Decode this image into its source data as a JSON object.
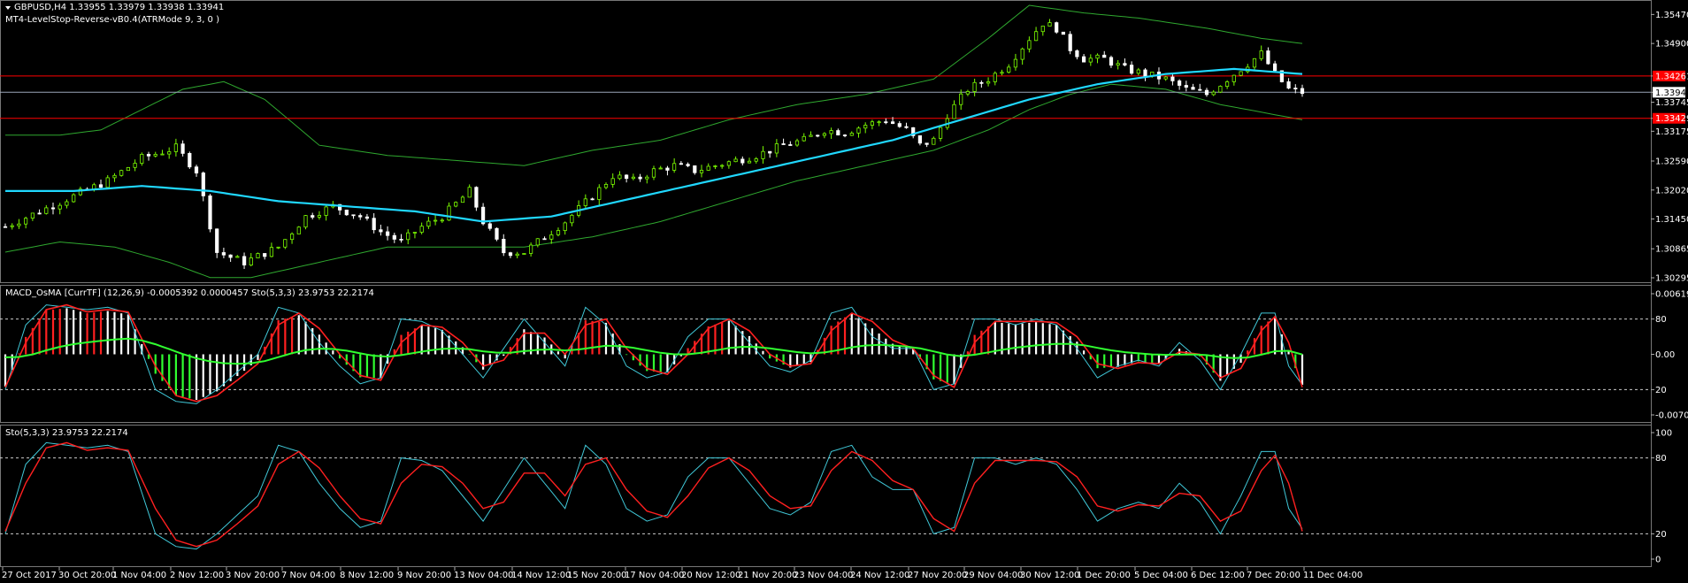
{
  "main_header": {
    "symbol_line": "GBPUSD,H4  1.33955 1.33979 1.33938 1.33941",
    "indicator_line": "MT4-LevelStop-Reverse-vB0.4(ATRMode 9, 3, 0 )"
  },
  "macd_header": "MACD_OsMA [CurrTF] (12,26,9) -0.0005392 0.0000457  Sto(5,3,3) 23.9753 22.2174",
  "stoch_header": "Sto(5,3,3) 23.9753 22.2174",
  "colors": {
    "bull_candle": "#7CFC00",
    "bear_candle": "#ffffff",
    "ma_line": "#20d8ff",
    "band_line": "#2fa82f",
    "resistance": "#ff0000",
    "current_price": "#9aa6b8",
    "macd_pos": "#ff2020",
    "macd_neg": "#30ff30",
    "stoch_k": "#40c8d8",
    "stoch_d": "#ff2020"
  },
  "chart_data": [
    {
      "type": "candlestick",
      "title": "GBPUSD,H4",
      "ylim": [
        1.30295,
        1.3565
      ],
      "price_ticks": [
        "1.35470",
        "1.34900",
        "1.34261",
        "1.33941",
        "1.33745",
        "1.33429",
        "1.33175",
        "1.32590",
        "1.32020",
        "1.31450",
        "1.30865",
        "1.30295"
      ],
      "resistance_levels": [
        1.34261,
        1.33429
      ],
      "current_price": 1.33941,
      "price_path": [
        [
          0,
          1.313
        ],
        [
          5,
          1.316
        ],
        [
          10,
          1.319
        ],
        [
          15,
          1.322
        ],
        [
          20,
          1.3265
        ],
        [
          25,
          1.3285
        ],
        [
          28,
          1.324
        ],
        [
          31,
          1.308
        ],
        [
          35,
          1.306
        ],
        [
          40,
          1.309
        ],
        [
          44,
          1.315
        ],
        [
          48,
          1.317
        ],
        [
          52,
          1.315
        ],
        [
          55,
          1.312
        ],
        [
          58,
          1.31
        ],
        [
          61,
          1.313
        ],
        [
          64,
          1.315
        ],
        [
          68,
          1.32
        ],
        [
          70,
          1.314
        ],
        [
          73,
          1.308
        ],
        [
          76,
          1.308
        ],
        [
          79,
          1.311
        ],
        [
          82,
          1.314
        ],
        [
          86,
          1.319
        ],
        [
          89,
          1.323
        ],
        [
          92,
          1.322
        ],
        [
          95,
          1.324
        ],
        [
          98,
          1.325
        ],
        [
          101,
          1.324
        ],
        [
          104,
          1.325
        ],
        [
          107,
          1.326
        ],
        [
          110,
          1.327
        ],
        [
          112,
          1.328
        ],
        [
          114,
          1.329
        ],
        [
          117,
          1.33
        ],
        [
          120,
          1.332
        ],
        [
          123,
          1.3315
        ],
        [
          126,
          1.333
        ],
        [
          129,
          1.334
        ],
        [
          132,
          1.332
        ],
        [
          134,
          1.329
        ],
        [
          136,
          1.33
        ],
        [
          138,
          1.335
        ],
        [
          141,
          1.34
        ],
        [
          144,
          1.342
        ],
        [
          147,
          1.345
        ],
        [
          150,
          1.35
        ],
        [
          152,
          1.353
        ],
        [
          154,
          1.352
        ],
        [
          156,
          1.348
        ],
        [
          158,
          1.346
        ],
        [
          161,
          1.346
        ],
        [
          164,
          1.344
        ],
        [
          167,
          1.343
        ],
        [
          170,
          1.342
        ],
        [
          173,
          1.34
        ],
        [
          176,
          1.339
        ],
        [
          179,
          1.342
        ],
        [
          182,
          1.345
        ],
        [
          184,
          1.347
        ],
        [
          186,
          1.343
        ],
        [
          188,
          1.34
        ],
        [
          190,
          1.3394
        ]
      ],
      "ma_path": [
        [
          0,
          1.32
        ],
        [
          10,
          1.32
        ],
        [
          20,
          1.321
        ],
        [
          30,
          1.32
        ],
        [
          40,
          1.318
        ],
        [
          50,
          1.317
        ],
        [
          60,
          1.316
        ],
        [
          70,
          1.314
        ],
        [
          80,
          1.315
        ],
        [
          90,
          1.318
        ],
        [
          100,
          1.321
        ],
        [
          110,
          1.324
        ],
        [
          120,
          1.327
        ],
        [
          130,
          1.33
        ],
        [
          140,
          1.334
        ],
        [
          150,
          1.338
        ],
        [
          160,
          1.341
        ],
        [
          170,
          1.343
        ],
        [
          180,
          1.344
        ],
        [
          190,
          1.343
        ]
      ],
      "upper_band": [
        [
          0,
          1.331
        ],
        [
          8,
          1.331
        ],
        [
          14,
          1.332
        ],
        [
          20,
          1.336
        ],
        [
          26,
          1.34
        ],
        [
          32,
          1.3415
        ],
        [
          38,
          1.338
        ],
        [
          46,
          1.329
        ],
        [
          56,
          1.327
        ],
        [
          66,
          1.326
        ],
        [
          76,
          1.325
        ],
        [
          86,
          1.328
        ],
        [
          96,
          1.33
        ],
        [
          106,
          1.334
        ],
        [
          116,
          1.337
        ],
        [
          126,
          1.339
        ],
        [
          136,
          1.342
        ],
        [
          144,
          1.35
        ],
        [
          150,
          1.3565
        ],
        [
          158,
          1.355
        ],
        [
          166,
          1.354
        ],
        [
          176,
          1.352
        ],
        [
          184,
          1.35
        ],
        [
          190,
          1.349
        ]
      ],
      "lower_band": [
        [
          0,
          1.308
        ],
        [
          8,
          1.31
        ],
        [
          16,
          1.309
        ],
        [
          24,
          1.306
        ],
        [
          30,
          1.303
        ],
        [
          36,
          1.303
        ],
        [
          46,
          1.306
        ],
        [
          56,
          1.309
        ],
        [
          66,
          1.309
        ],
        [
          76,
          1.309
        ],
        [
          86,
          1.311
        ],
        [
          96,
          1.314
        ],
        [
          106,
          1.318
        ],
        [
          116,
          1.322
        ],
        [
          126,
          1.325
        ],
        [
          136,
          1.328
        ],
        [
          144,
          1.332
        ],
        [
          150,
          1.336
        ],
        [
          156,
          1.339
        ],
        [
          162,
          1.341
        ],
        [
          170,
          1.34
        ],
        [
          178,
          1.337
        ],
        [
          186,
          1.335
        ],
        [
          190,
          1.334
        ]
      ]
    },
    {
      "type": "histogram",
      "title": "MACD_OsMA [CurrTF] (12,26,9)",
      "ylim": [
        -0.00707,
        0.006198
      ],
      "level_ticks": [
        "0.006198",
        "80",
        "0.00",
        "20",
        "-0.007074"
      ],
      "stoch_overlay_levels": [
        20,
        80
      ]
    },
    {
      "type": "line",
      "title": "Sto(5,3,3)",
      "ylim": [
        0,
        100
      ],
      "level_ticks": [
        "100",
        "80",
        "20",
        "0"
      ],
      "levels": [
        20,
        80
      ],
      "k_path": [
        [
          0,
          20
        ],
        [
          3,
          75
        ],
        [
          6,
          92
        ],
        [
          9,
          90
        ],
        [
          12,
          88
        ],
        [
          15,
          90
        ],
        [
          18,
          85
        ],
        [
          22,
          20
        ],
        [
          25,
          10
        ],
        [
          28,
          8
        ],
        [
          31,
          20
        ],
        [
          34,
          35
        ],
        [
          37,
          50
        ],
        [
          40,
          90
        ],
        [
          43,
          85
        ],
        [
          46,
          60
        ],
        [
          49,
          40
        ],
        [
          52,
          25
        ],
        [
          55,
          30
        ],
        [
          58,
          80
        ],
        [
          61,
          78
        ],
        [
          64,
          70
        ],
        [
          67,
          50
        ],
        [
          70,
          30
        ],
        [
          73,
          55
        ],
        [
          76,
          80
        ],
        [
          79,
          60
        ],
        [
          82,
          40
        ],
        [
          85,
          90
        ],
        [
          88,
          75
        ],
        [
          91,
          40
        ],
        [
          94,
          30
        ],
        [
          97,
          35
        ],
        [
          100,
          65
        ],
        [
          103,
          80
        ],
        [
          106,
          80
        ],
        [
          109,
          60
        ],
        [
          112,
          40
        ],
        [
          115,
          35
        ],
        [
          118,
          45
        ],
        [
          121,
          85
        ],
        [
          124,
          90
        ],
        [
          127,
          65
        ],
        [
          130,
          55
        ],
        [
          133,
          55
        ],
        [
          136,
          20
        ],
        [
          139,
          25
        ],
        [
          142,
          80
        ],
        [
          145,
          80
        ],
        [
          148,
          75
        ],
        [
          151,
          80
        ],
        [
          154,
          75
        ],
        [
          157,
          55
        ],
        [
          160,
          30
        ],
        [
          163,
          40
        ],
        [
          166,
          45
        ],
        [
          169,
          40
        ],
        [
          172,
          60
        ],
        [
          175,
          45
        ],
        [
          178,
          20
        ],
        [
          181,
          50
        ],
        [
          184,
          85
        ],
        [
          186,
          85
        ],
        [
          188,
          40
        ],
        [
          190,
          24
        ]
      ],
      "d_path": [
        [
          0,
          22
        ],
        [
          3,
          60
        ],
        [
          6,
          88
        ],
        [
          9,
          92
        ],
        [
          12,
          86
        ],
        [
          15,
          88
        ],
        [
          18,
          86
        ],
        [
          22,
          40
        ],
        [
          25,
          15
        ],
        [
          28,
          10
        ],
        [
          31,
          15
        ],
        [
          34,
          28
        ],
        [
          37,
          42
        ],
        [
          40,
          75
        ],
        [
          43,
          85
        ],
        [
          46,
          72
        ],
        [
          49,
          50
        ],
        [
          52,
          32
        ],
        [
          55,
          28
        ],
        [
          58,
          60
        ],
        [
          61,
          75
        ],
        [
          64,
          73
        ],
        [
          67,
          60
        ],
        [
          70,
          40
        ],
        [
          73,
          45
        ],
        [
          76,
          68
        ],
        [
          79,
          68
        ],
        [
          82,
          50
        ],
        [
          85,
          75
        ],
        [
          88,
          80
        ],
        [
          91,
          55
        ],
        [
          94,
          38
        ],
        [
          97,
          33
        ],
        [
          100,
          50
        ],
        [
          103,
          72
        ],
        [
          106,
          80
        ],
        [
          109,
          70
        ],
        [
          112,
          50
        ],
        [
          115,
          40
        ],
        [
          118,
          42
        ],
        [
          121,
          70
        ],
        [
          124,
          85
        ],
        [
          127,
          78
        ],
        [
          130,
          62
        ],
        [
          133,
          55
        ],
        [
          136,
          32
        ],
        [
          139,
          22
        ],
        [
          142,
          60
        ],
        [
          145,
          78
        ],
        [
          148,
          78
        ],
        [
          151,
          78
        ],
        [
          154,
          77
        ],
        [
          157,
          65
        ],
        [
          160,
          42
        ],
        [
          163,
          38
        ],
        [
          166,
          43
        ],
        [
          169,
          42
        ],
        [
          172,
          52
        ],
        [
          175,
          50
        ],
        [
          178,
          30
        ],
        [
          181,
          38
        ],
        [
          184,
          70
        ],
        [
          186,
          82
        ],
        [
          188,
          60
        ],
        [
          190,
          22
        ]
      ]
    }
  ],
  "time_axis": [
    "27 Oct 2017",
    "30 Oct 20:00",
    "1 Nov 04:00",
    "2 Nov 12:00",
    "3 Nov 20:00",
    "7 Nov 04:00",
    "8 Nov 12:00",
    "9 Nov 20:00",
    "13 Nov 04:00",
    "14 Nov 12:00",
    "15 Nov 20:00",
    "17 Nov 04:00",
    "20 Nov 12:00",
    "21 Nov 20:00",
    "23 Nov 04:00",
    "24 Nov 12:00",
    "27 Nov 20:00",
    "29 Nov 04:00",
    "30 Nov 12:00",
    "1 Dec 20:00",
    "5 Dec 04:00",
    "6 Dec 12:00",
    "7 Dec 20:00",
    "11 Dec 04:00"
  ]
}
